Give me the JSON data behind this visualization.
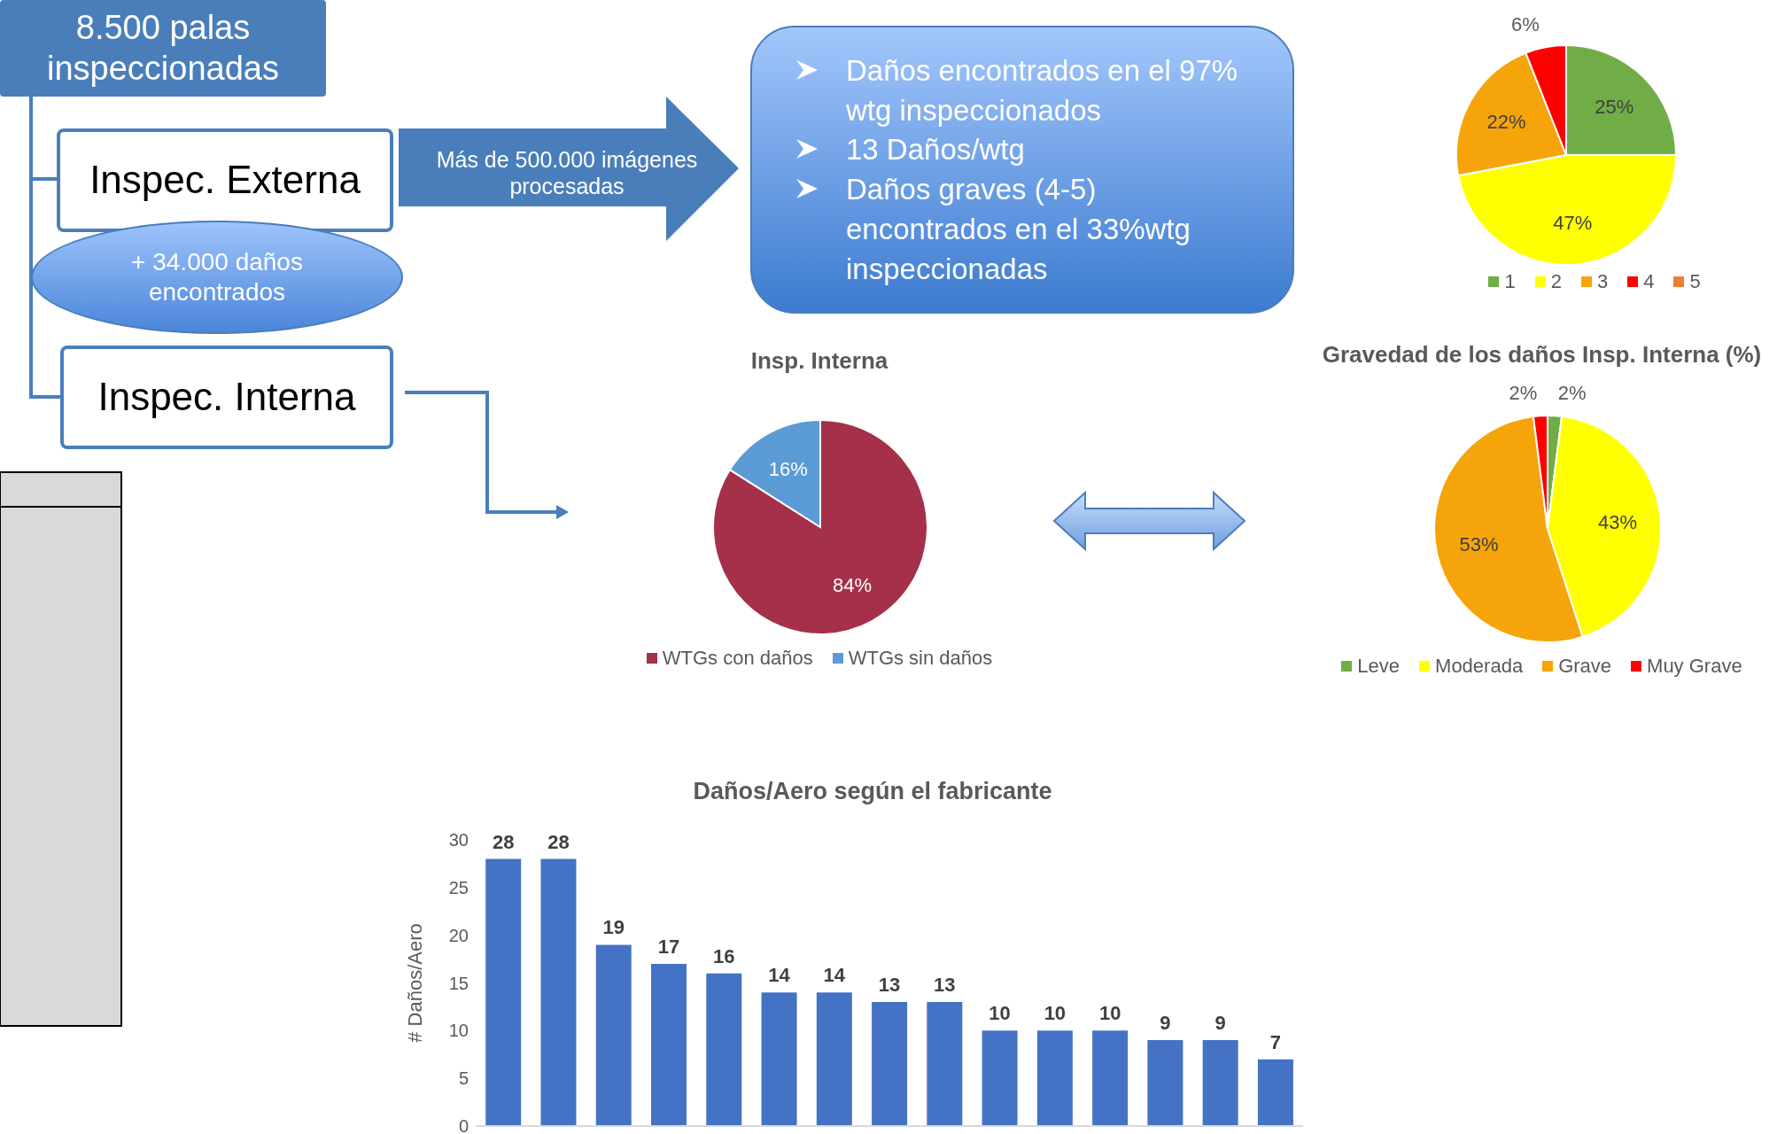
{
  "chart_data": [
    {
      "type": "other",
      "annotations": [
        "8.500 palas inspeccionadas",
        "Inspec. Externa",
        "+ 34.000 daños encontrados",
        "Inspec. Interna",
        "Más de 500.000 imágenes procesadas",
        "Daños encontrados en el 97% wtg inspeccionados",
        "13 Daños/wtg",
        "Daños graves (4-5) encontrados en el 33%wtg inspeccionadas"
      ]
    },
    {
      "type": "pie",
      "categories": [
        "1",
        "2",
        "3",
        "4",
        "5"
      ],
      "values": [
        25,
        47,
        22,
        6,
        0
      ],
      "value_labels": [
        "25%",
        "47%",
        "22%",
        "6%",
        null
      ],
      "colors": [
        "#70ad47",
        "#ffff00",
        "#f5a40a",
        "#ff0000",
        "#ed7d31"
      ],
      "legend": "bottom"
    },
    {
      "type": "pie",
      "title": "Insp. Interna",
      "categories": [
        "WTGs con daños",
        "WTGs sin daños"
      ],
      "values": [
        84,
        16
      ],
      "value_labels": [
        "84%",
        "16%"
      ],
      "colors": [
        "#a5304a",
        "#5b9bd5"
      ],
      "legend": "bottom"
    },
    {
      "type": "pie",
      "title": "Gravedad de los daños Insp. Interna (%)",
      "categories": [
        "Leve",
        "Moderada",
        "Grave",
        "Muy Grave"
      ],
      "values": [
        2,
        43,
        53,
        2
      ],
      "value_labels": [
        "2%",
        "43%",
        "53%",
        "2%"
      ],
      "colors": [
        "#70ad47",
        "#ffff00",
        "#f5a40a",
        "#ff0000"
      ],
      "legend": "bottom"
    },
    {
      "type": "bar",
      "title": "Daños/Aero según el fabricante",
      "ylabel": "# Daños/Aero",
      "categories": [
        null,
        null,
        null,
        null,
        null,
        null,
        null,
        null,
        null,
        null,
        null,
        null,
        null,
        null,
        null
      ],
      "values": [
        28,
        28,
        19,
        17,
        16,
        14,
        14,
        13,
        13,
        10,
        10,
        10,
        9,
        9,
        7
      ],
      "color": "#4472c4",
      "ylim": [
        0,
        30
      ],
      "yticks": [
        0,
        5,
        10,
        15,
        20,
        25,
        30
      ],
      "data_labels": true
    }
  ]
}
